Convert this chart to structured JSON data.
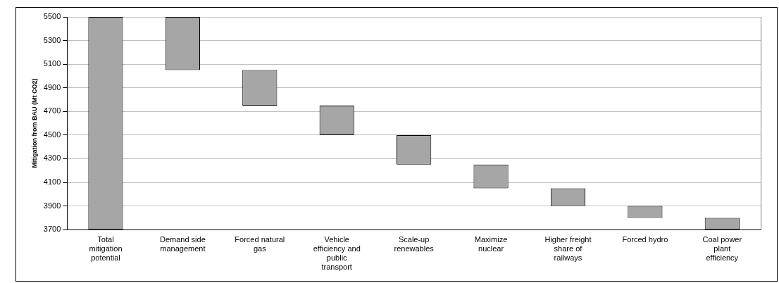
{
  "chart_data": {
    "type": "bar",
    "ylabel": "Mitigation from BAU (Mt CO2)",
    "categories": [
      "Total mitigation potential",
      "Demand side management",
      "Forced natural gas",
      "Vehicle efficiency and public transport",
      "Scale-up renewables",
      "Maximize nuclear",
      "Higher freight share of railways",
      "Forced hydro",
      "Coal power plant efficiency"
    ],
    "values": [
      1800,
      450,
      300,
      250,
      250,
      200,
      150,
      100,
      100
    ],
    "base": [
      3700,
      5050,
      4750,
      4500,
      4250,
      4050,
      3900,
      3800,
      3700
    ],
    "color": "#a6a6a6",
    "ylim": [
      3700,
      5500
    ],
    "yticks": [
      3700,
      3900,
      4100,
      4300,
      4500,
      4700,
      4900,
      5100,
      5300,
      5500
    ],
    "grid": "y",
    "legend": false
  }
}
